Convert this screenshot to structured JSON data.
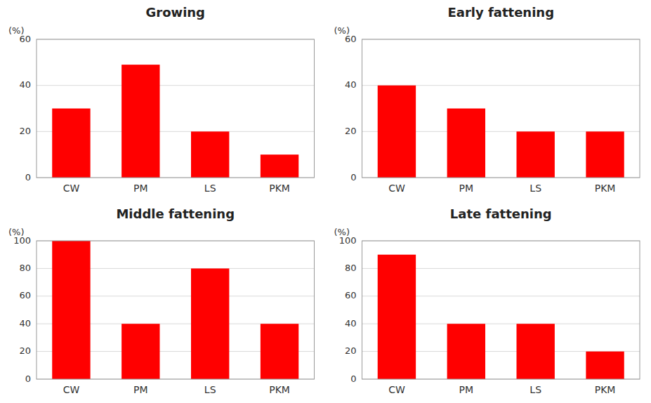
{
  "chart_data": [
    {
      "type": "bar",
      "title": "Growing",
      "ylabel": "(%)",
      "categories": [
        "CW",
        "PM",
        "LS",
        "PKM"
      ],
      "values": [
        30,
        49,
        20,
        10
      ],
      "color": "#FF0000",
      "ylim": [
        0,
        60
      ],
      "yticks": [
        0,
        20,
        40,
        60
      ],
      "grid": true
    },
    {
      "type": "bar",
      "title": "Early fattening",
      "ylabel": "(%)",
      "categories": [
        "CW",
        "PM",
        "LS",
        "PKM"
      ],
      "values": [
        40,
        30,
        20,
        20
      ],
      "color": "#FF0000",
      "ylim": [
        0,
        60
      ],
      "yticks": [
        0,
        20,
        40,
        60
      ],
      "grid": true
    },
    {
      "type": "bar",
      "title": "Middle fattening",
      "ylabel": "(%)",
      "categories": [
        "CW",
        "PM",
        "LS",
        "PKM"
      ],
      "values": [
        100,
        40,
        80,
        40
      ],
      "color": "#FF0000",
      "ylim": [
        0,
        100
      ],
      "yticks": [
        0,
        20,
        40,
        60,
        80,
        100
      ],
      "grid": true
    },
    {
      "type": "bar",
      "title": "Late fattening",
      "ylabel": "(%)",
      "categories": [
        "CW",
        "PM",
        "LS",
        "PKM"
      ],
      "values": [
        90,
        40,
        40,
        20
      ],
      "color": "#FF0000",
      "ylim": [
        0,
        100
      ],
      "yticks": [
        0,
        20,
        40,
        60,
        80,
        100
      ],
      "grid": true
    }
  ]
}
